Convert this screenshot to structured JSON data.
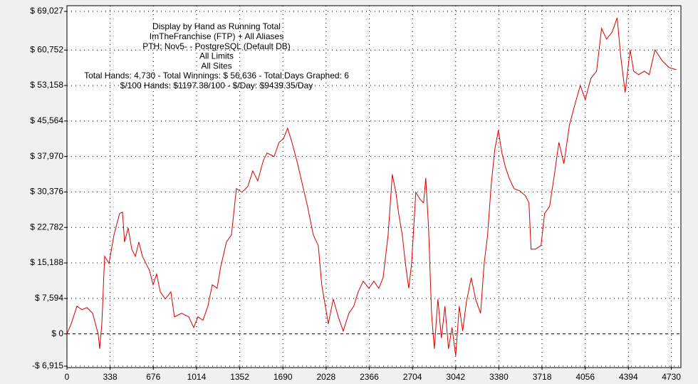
{
  "chart_data": {
    "type": "line",
    "annotations": [
      "Display by Hand as Running Total",
      "ImTheFranchise (FTP) + All Aliases",
      "PTH: Nov5- - PostgreSQL (Default DB)",
      "All Limits",
      "All Sites",
      "Total Hands: 4,730 - Total Winnings: $ 56,636 - Total Days Graphed: 6",
      "$/100 Hands: $1197.38/100 - $/Day: $9439.35/Day"
    ],
    "x": [
      0,
      33,
      78,
      117,
      156,
      201,
      245,
      256,
      273,
      295,
      329,
      368,
      412,
      435,
      451,
      479,
      507,
      535,
      563,
      591,
      646,
      674,
      702,
      730,
      769,
      813,
      841,
      897,
      953,
      992,
      1025,
      1064,
      1103,
      1137,
      1175,
      1203,
      1248,
      1287,
      1326,
      1370,
      1415,
      1454,
      1493,
      1538,
      1566,
      1621,
      1660,
      1694,
      1727,
      1761,
      1805,
      1844,
      1883,
      1928,
      1967,
      1994,
      2022,
      2045,
      2084,
      2123,
      2162,
      2206,
      2245,
      2279,
      2318,
      2363,
      2402,
      2441,
      2474,
      2513,
      2546,
      2574,
      2596,
      2624,
      2652,
      2675,
      2697,
      2730,
      2763,
      2791,
      2808,
      2830,
      2853,
      2875,
      2903,
      2930,
      2958,
      2986,
      3014,
      3042,
      3070,
      3097,
      3125,
      3164,
      3198,
      3237,
      3265,
      3292,
      3320,
      3348,
      3376,
      3404,
      3432,
      3460,
      3499,
      3543,
      3588,
      3616,
      3632,
      3666,
      3710,
      3738,
      3777,
      3811,
      3850,
      3889,
      3933,
      3978,
      4017,
      4056,
      4100,
      4145,
      4184,
      4223,
      4267,
      4306,
      4334,
      4368,
      4407,
      4435,
      4474,
      4518,
      4557,
      4602,
      4657,
      4713,
      4769
    ],
    "series": [
      {
        "name": "Running Total",
        "color": "#d40000",
        "values": [
          0,
          2134,
          5944,
          5182,
          5640,
          4420,
          -150,
          -3200,
          2134,
          16600,
          15090,
          21180,
          25760,
          26060,
          19660,
          22700,
          18140,
          16600,
          19660,
          16600,
          13560,
          10520,
          12800,
          8990,
          7470,
          8990,
          3660,
          4420,
          3660,
          1370,
          3660,
          2900,
          5940,
          10520,
          9750,
          14330,
          19660,
          21180,
          31090,
          30330,
          31550,
          34900,
          32770,
          37190,
          38710,
          37950,
          41000,
          41760,
          44040,
          41000,
          36420,
          31850,
          27280,
          21180,
          18900,
          10520,
          5940,
          2130,
          7470,
          3660,
          610,
          4420,
          5940,
          8990,
          11280,
          9750,
          11280,
          9750,
          12040,
          21180,
          34140,
          30330,
          25760,
          21180,
          14330,
          9750,
          15090,
          30330,
          28810,
          28040,
          33380,
          22710,
          4420,
          -3200,
          7470,
          -910,
          5940,
          -3200,
          1370,
          -4720,
          5940,
          610,
          6710,
          12040,
          7470,
          4420,
          15090,
          21180,
          31850,
          39470,
          43580,
          38710,
          35660,
          33380,
          31090,
          30630,
          29570,
          28040,
          18140,
          18140,
          18900,
          25760,
          27280,
          33380,
          41000,
          36420,
          44800,
          49380,
          53190,
          50140,
          54710,
          56240,
          65380,
          63100,
          64620,
          67670,
          59290,
          51670,
          60810,
          56240,
          55480,
          56240,
          55480,
          60810,
          58520,
          57000,
          56540
        ]
      }
    ],
    "xlim": [
      0,
      4800
    ],
    "xticks": [
      0,
      338,
      676,
      1014,
      1352,
      1690,
      2028,
      2366,
      2704,
      3042,
      3380,
      3718,
      4056,
      4394,
      4730
    ],
    "ylim": [
      -6915,
      69027
    ],
    "yticks": [
      {
        "value": -6915,
        "label": "-$ 6,915"
      },
      {
        "value": 0,
        "label": "$ 0"
      },
      {
        "value": 7594,
        "label": "$ 7,594"
      },
      {
        "value": 15188,
        "label": "$ 15,188"
      },
      {
        "value": 22782,
        "label": "$ 22,782"
      },
      {
        "value": 30376,
        "label": "$ 30,376"
      },
      {
        "value": 37970,
        "label": "$ 37,970"
      },
      {
        "value": 45564,
        "label": "$ 45,564"
      },
      {
        "value": 53158,
        "label": "$ 53,158"
      },
      {
        "value": 60752,
        "label": "$ 60,752"
      },
      {
        "value": 69027,
        "label": "$ 69,027"
      }
    ],
    "grid": true
  }
}
